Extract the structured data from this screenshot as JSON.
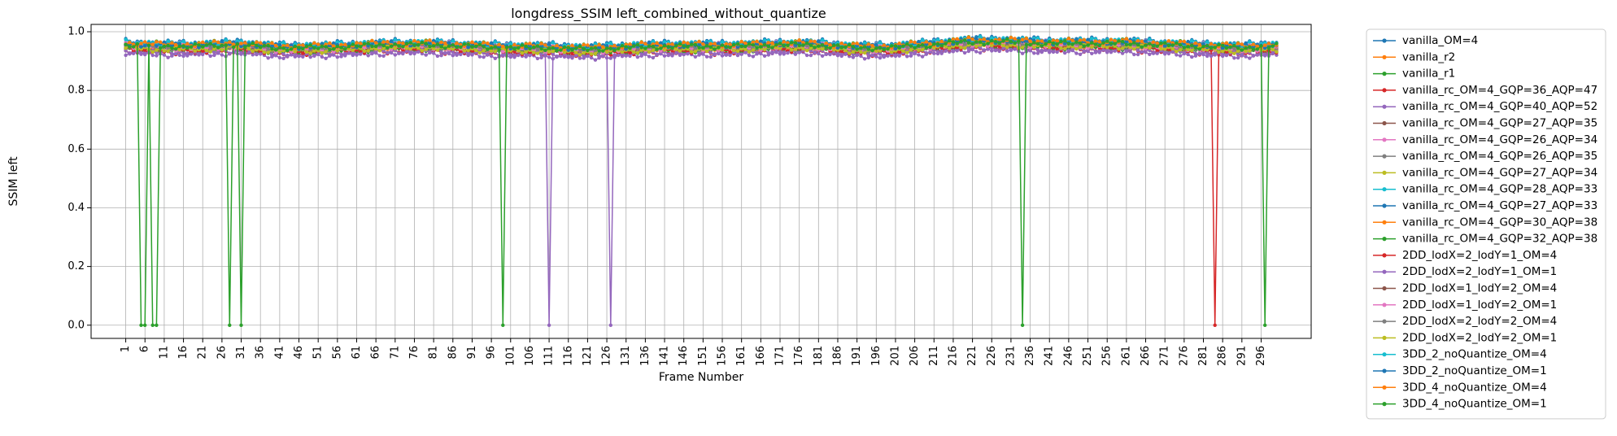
{
  "chart_data": {
    "type": "line",
    "title": "longdress_SSIM left_combined_without_quantize",
    "xlabel": "Frame Number",
    "ylabel": "SSIM left",
    "xlim": [
      -8,
      309
    ],
    "ylim": [
      -0.045,
      1.025
    ],
    "grid": true,
    "legend_position": "outside-right",
    "x_ticks": [
      1,
      6,
      11,
      16,
      21,
      26,
      31,
      36,
      41,
      46,
      51,
      56,
      61,
      66,
      71,
      76,
      81,
      86,
      91,
      96,
      101,
      106,
      111,
      116,
      121,
      126,
      131,
      136,
      141,
      146,
      151,
      156,
      161,
      166,
      171,
      176,
      181,
      186,
      191,
      196,
      201,
      206,
      211,
      216,
      221,
      226,
      231,
      236,
      241,
      246,
      251,
      256,
      261,
      266,
      271,
      276,
      281,
      286,
      291,
      296
    ],
    "y_ticks": [
      0.0,
      0.2,
      0.4,
      0.6,
      0.8,
      1.0
    ],
    "x": {
      "start": 1,
      "end": 300,
      "step": 1
    },
    "baseline": [
      [
        1,
        0.955
      ],
      [
        10,
        0.95
      ],
      [
        20,
        0.95
      ],
      [
        30,
        0.955
      ],
      [
        40,
        0.945
      ],
      [
        50,
        0.945
      ],
      [
        60,
        0.95
      ],
      [
        70,
        0.955
      ],
      [
        80,
        0.955
      ],
      [
        90,
        0.95
      ],
      [
        100,
        0.945
      ],
      [
        110,
        0.945
      ],
      [
        120,
        0.94
      ],
      [
        130,
        0.945
      ],
      [
        140,
        0.95
      ],
      [
        150,
        0.95
      ],
      [
        160,
        0.95
      ],
      [
        170,
        0.955
      ],
      [
        180,
        0.955
      ],
      [
        190,
        0.945
      ],
      [
        200,
        0.945
      ],
      [
        210,
        0.955
      ],
      [
        220,
        0.965
      ],
      [
        230,
        0.965
      ],
      [
        240,
        0.96
      ],
      [
        250,
        0.96
      ],
      [
        260,
        0.96
      ],
      [
        270,
        0.955
      ],
      [
        280,
        0.95
      ],
      [
        290,
        0.945
      ],
      [
        300,
        0.95
      ]
    ],
    "series": [
      {
        "name": "vanilla_OM=4",
        "color": "#1f77b4",
        "offset": 0.012,
        "dips": []
      },
      {
        "name": "vanilla_r2",
        "color": "#ff7f0e",
        "offset": 0.0,
        "dips": []
      },
      {
        "name": "vanilla_r1",
        "color": "#2ca02c",
        "offset": 0.008,
        "dips": []
      },
      {
        "name": "vanilla_rc_OM=4_GQP=36_AQP=47",
        "color": "#d62728",
        "offset": -0.02,
        "dips": []
      },
      {
        "name": "vanilla_rc_OM=4_GQP=40_AQP=52",
        "color": "#9467bd",
        "offset": -0.028,
        "dips": []
      },
      {
        "name": "vanilla_rc_OM=4_GQP=27_AQP=35",
        "color": "#8c564b",
        "offset": -0.004,
        "dips": []
      },
      {
        "name": "vanilla_rc_OM=4_GQP=26_AQP=34",
        "color": "#e377c2",
        "offset": 0.004,
        "dips": []
      },
      {
        "name": "vanilla_rc_OM=4_GQP=26_AQP=35",
        "color": "#7f7f7f",
        "offset": 0.002,
        "dips": []
      },
      {
        "name": "vanilla_rc_OM=4_GQP=27_AQP=34",
        "color": "#bcbd22",
        "offset": -0.002,
        "dips": []
      },
      {
        "name": "vanilla_rc_OM=4_GQP=28_AQP=33",
        "color": "#17becf",
        "offset": 0.006,
        "dips": []
      },
      {
        "name": "vanilla_rc_OM=4_GQP=27_AQP=33",
        "color": "#1f77b4",
        "offset": 0.003,
        "dips": []
      },
      {
        "name": "vanilla_rc_OM=4_GQP=30_AQP=38",
        "color": "#ff7f0e",
        "offset": -0.008,
        "dips": []
      },
      {
        "name": "vanilla_rc_OM=4_GQP=32_AQP=38",
        "color": "#2ca02c",
        "offset": -0.012,
        "dips": []
      },
      {
        "name": "2DD_lodX=2_lodY=1_OM=4",
        "color": "#d62728",
        "offset": -0.015,
        "dips": [
          284
        ]
      },
      {
        "name": "2DD_lodX=2_lodY=1_OM=1",
        "color": "#9467bd",
        "offset": -0.022,
        "dips": [
          111,
          127
        ]
      },
      {
        "name": "2DD_lodX=1_lodY=2_OM=4",
        "color": "#8c564b",
        "offset": 0.001,
        "dips": []
      },
      {
        "name": "2DD_lodX=1_lodY=2_OM=1",
        "color": "#e377c2",
        "offset": -0.006,
        "dips": []
      },
      {
        "name": "2DD_lodX=2_lodY=2_OM=4",
        "color": "#7f7f7f",
        "offset": -0.003,
        "dips": []
      },
      {
        "name": "2DD_lodX=2_lodY=2_OM=1",
        "color": "#bcbd22",
        "offset": -0.01,
        "dips": []
      },
      {
        "name": "3DD_2_noQuantize_OM=4",
        "color": "#17becf",
        "offset": 0.009,
        "dips": []
      },
      {
        "name": "3DD_2_noQuantize_OM=1",
        "color": "#1f77b4",
        "offset": 0.005,
        "dips": []
      },
      {
        "name": "3DD_4_noQuantize_OM=4",
        "color": "#ff7f0e",
        "offset": 0.007,
        "dips": []
      },
      {
        "name": "3DD_4_noQuantize_OM=1",
        "color": "#2ca02c",
        "offset": 0.0,
        "dips": [
          5,
          6,
          8,
          9,
          28,
          31,
          99,
          234,
          297
        ]
      }
    ]
  }
}
